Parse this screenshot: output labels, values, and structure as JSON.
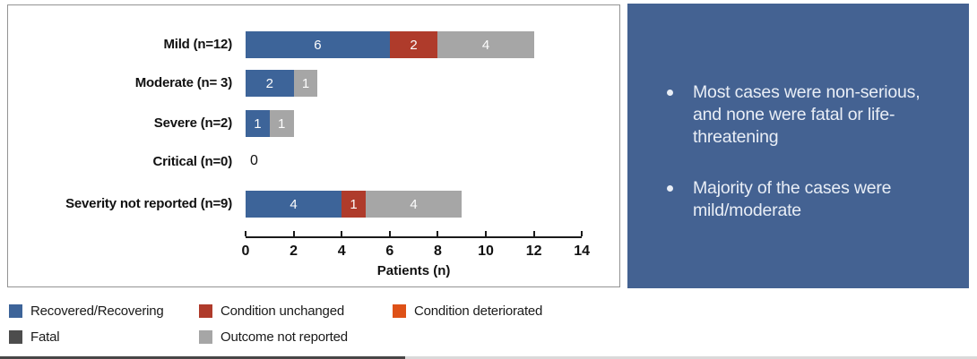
{
  "chart_data": {
    "type": "bar",
    "orientation": "horizontal",
    "stacked": true,
    "title": "",
    "xlabel": "Patients (n)",
    "xlim": [
      0,
      14
    ],
    "xticks": [
      0,
      2,
      4,
      6,
      8,
      10,
      12,
      14
    ],
    "grid": false,
    "legend_position": "bottom-left outside",
    "categories": [
      "Mild (n=12)",
      "Moderate (n= 3)",
      "Severe (n=2)",
      "Critical (n=0)",
      "Severity not reported (n=9)"
    ],
    "series": [
      {
        "name": "Recovered/Recovering",
        "color": "#3D6499",
        "values": [
          6,
          2,
          1,
          0,
          4
        ]
      },
      {
        "name": "Condition unchanged",
        "color": "#AF3B2B",
        "values": [
          2,
          0,
          0,
          0,
          1
        ]
      },
      {
        "name": "Condition deteriorated",
        "color": "#DE5117",
        "values": [
          0,
          0,
          0,
          0,
          0
        ]
      },
      {
        "name": "Fatal",
        "color": "#4D4D4D",
        "values": [
          0,
          0,
          0,
          0,
          0
        ]
      },
      {
        "name": "Outcome not reported",
        "color": "#A6A6A6",
        "values": [
          4,
          1,
          1,
          0,
          4
        ]
      }
    ],
    "zero_value_label": "0"
  },
  "legend": {
    "items": [
      {
        "label": "Recovered/Recovering",
        "color": "#3D6499"
      },
      {
        "label": "Condition unchanged",
        "color": "#AF3B2B"
      },
      {
        "label": "Condition deteriorated",
        "color": "#DE5117"
      },
      {
        "label": "Fatal",
        "color": "#4D4D4D"
      },
      {
        "label": "Outcome not reported",
        "color": "#A6A6A6"
      }
    ]
  },
  "notes_panel": {
    "background": "#446292",
    "bullets": [
      "Most cases were non-serious, and none were fatal or life-threatening",
      "Majority of the cases were mild/moderate"
    ]
  }
}
